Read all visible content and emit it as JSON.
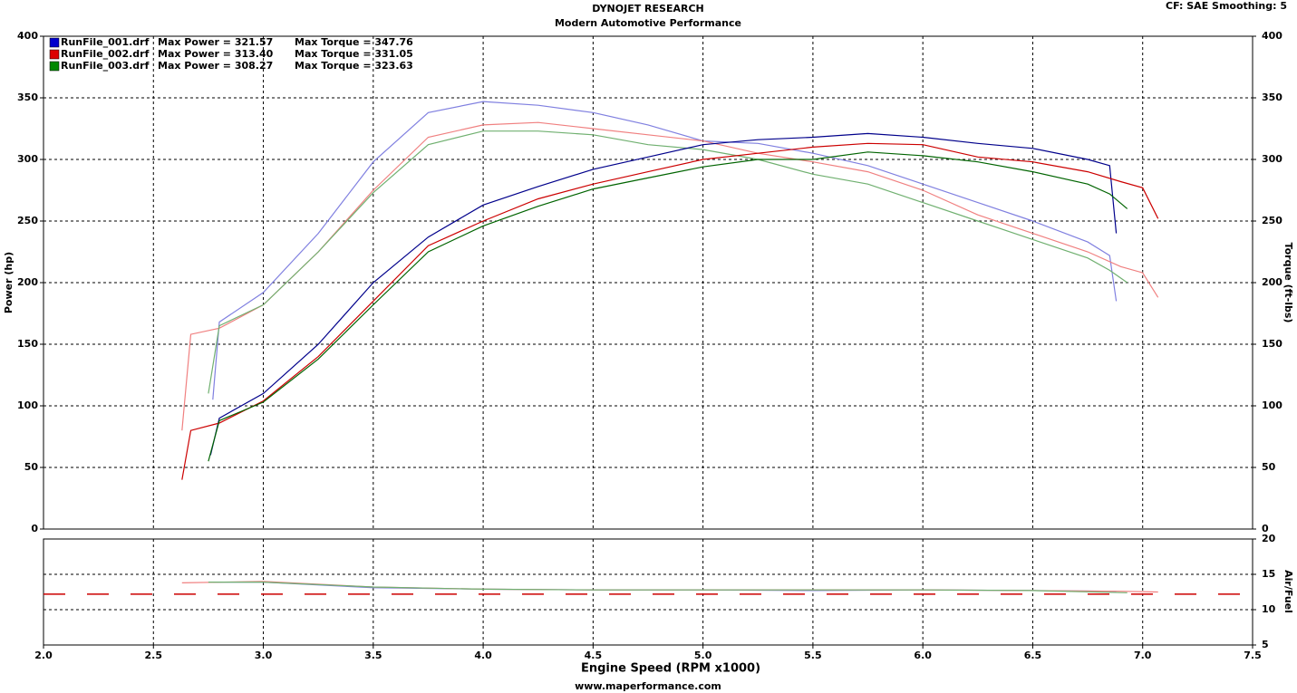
{
  "settings_note": "CF: SAE  Smoothing: 5",
  "footer": "www.maperformance.com",
  "chart_data": [
    {
      "type": "line",
      "title": "DYNOJET RESEARCH",
      "subtitle": "Modern Automotive Performance",
      "y_label": "Power (hp)",
      "y2_label": "Torque (ft-lbs)",
      "xlim": [
        2.0,
        7.5
      ],
      "ylim": [
        0,
        400
      ],
      "yticks": [
        0,
        50,
        100,
        150,
        200,
        250,
        300,
        350,
        400
      ],
      "y2lim": [
        0,
        400
      ],
      "y2ticks": [
        0,
        50,
        100,
        150,
        200,
        250,
        300,
        350,
        400
      ],
      "grid": true,
      "legend": [
        {
          "color": "#0000cc",
          "file": "RunFile_001.drf",
          "max_power": "Max Power = 321.57",
          "max_torque": "Max Torque = 347.76"
        },
        {
          "color": "#dd0000",
          "file": "RunFile_002.drf",
          "max_power": "Max Power = 313.40",
          "max_torque": "Max Torque = 331.05"
        },
        {
          "color": "#008800",
          "file": "RunFile_003.drf",
          "max_power": "Max Power = 308.27",
          "max_torque": "Max Torque = 323.63"
        }
      ],
      "series": [
        {
          "color": "#00008b",
          "x": [
            2.76,
            2.8,
            3.0,
            3.25,
            3.5,
            3.75,
            4.0,
            4.25,
            4.5,
            4.75,
            5.0,
            5.25,
            5.5,
            5.75,
            6.0,
            6.25,
            6.5,
            6.75,
            6.85,
            6.88
          ],
          "values": [
            60,
            90,
            110,
            150,
            200,
            237,
            263,
            278,
            292,
            302,
            312,
            316,
            318,
            321,
            318,
            313,
            309,
            300,
            295,
            240
          ]
        },
        {
          "color": "#cc0000",
          "x": [
            2.63,
            2.67,
            2.8,
            3.0,
            3.25,
            3.5,
            3.75,
            4.0,
            4.25,
            4.5,
            4.75,
            5.0,
            5.25,
            5.5,
            5.75,
            6.0,
            6.25,
            6.5,
            6.75,
            6.9,
            7.0,
            7.07
          ],
          "values": [
            40,
            80,
            86,
            104,
            140,
            185,
            230,
            250,
            268,
            280,
            290,
            300,
            305,
            310,
            313,
            312,
            302,
            298,
            290,
            282,
            277,
            252
          ]
        },
        {
          "color": "#006400",
          "x": [
            2.75,
            2.8,
            3.0,
            3.25,
            3.5,
            3.75,
            4.0,
            4.25,
            4.5,
            4.75,
            5.0,
            5.25,
            5.5,
            5.75,
            6.0,
            6.25,
            6.5,
            6.75,
            6.85,
            6.93
          ],
          "values": [
            55,
            88,
            103,
            138,
            182,
            225,
            246,
            262,
            276,
            285,
            294,
            300,
            300,
            306,
            303,
            298,
            290,
            280,
            272,
            260
          ]
        },
        {
          "color": "#8080e0",
          "axis": "y2",
          "x": [
            2.77,
            2.8,
            3.0,
            3.25,
            3.5,
            3.75,
            4.0,
            4.25,
            4.5,
            4.75,
            5.0,
            5.25,
            5.5,
            5.75,
            6.0,
            6.25,
            6.5,
            6.75,
            6.85,
            6.88
          ],
          "values": [
            105,
            168,
            192,
            240,
            298,
            338,
            347,
            344,
            338,
            328,
            315,
            313,
            305,
            295,
            280,
            265,
            250,
            233,
            222,
            185
          ]
        },
        {
          "color": "#f08080",
          "axis": "y2",
          "x": [
            2.63,
            2.67,
            2.8,
            3.0,
            3.25,
            3.5,
            3.75,
            4.0,
            4.25,
            4.5,
            4.75,
            5.0,
            5.25,
            5.5,
            5.75,
            6.0,
            6.25,
            6.5,
            6.75,
            6.9,
            7.0,
            7.07
          ],
          "values": [
            80,
            158,
            163,
            182,
            225,
            275,
            318,
            328,
            330,
            325,
            320,
            315,
            305,
            298,
            290,
            275,
            255,
            240,
            225,
            213,
            208,
            188
          ]
        },
        {
          "color": "#70b070",
          "axis": "y2",
          "x": [
            2.75,
            2.8,
            3.0,
            3.25,
            3.5,
            3.75,
            4.0,
            4.25,
            4.5,
            4.75,
            5.0,
            5.25,
            5.5,
            5.75,
            6.0,
            6.25,
            6.5,
            6.75,
            6.85,
            6.93
          ],
          "values": [
            110,
            165,
            182,
            225,
            273,
            312,
            323,
            323,
            320,
            312,
            308,
            300,
            288,
            280,
            265,
            250,
            235,
            220,
            210,
            200
          ]
        }
      ]
    },
    {
      "type": "line",
      "x_label": "Engine Speed (RPM x1000)",
      "y2_label": "Air/Fuel",
      "xlim": [
        2.0,
        7.5
      ],
      "xticks": [
        {
          "value": 2,
          "label": "2.0"
        },
        2.5,
        {
          "value": 3,
          "label": "3.0"
        },
        3.5,
        {
          "value": 4,
          "label": "4.0"
        },
        4.5,
        {
          "value": 5,
          "label": "5.0"
        },
        5.5,
        {
          "value": 6,
          "label": "6.0"
        },
        6.5,
        {
          "value": 7,
          "label": "7.0"
        },
        7.5
      ],
      "y2lim": [
        5,
        20
      ],
      "y2ticks": [
        5,
        10,
        15,
        20
      ],
      "grid": true,
      "reference_line": {
        "value": 12.2,
        "color": "#cc0000"
      },
      "series": [
        {
          "color": "#8080e0",
          "axis": "y2",
          "x": [
            2.77,
            3.0,
            3.5,
            4.0,
            4.5,
            5.0,
            5.5,
            6.0,
            6.5,
            6.88
          ],
          "values": [
            13.9,
            13.9,
            13.1,
            12.9,
            12.8,
            12.8,
            12.7,
            12.8,
            12.7,
            12.6
          ]
        },
        {
          "color": "#f08080",
          "axis": "y2",
          "x": [
            2.63,
            3.0,
            3.5,
            4.0,
            4.5,
            5.0,
            5.5,
            6.0,
            6.5,
            6.9,
            7.07
          ],
          "values": [
            13.8,
            14.0,
            13.2,
            12.9,
            12.8,
            12.8,
            12.8,
            12.8,
            12.7,
            12.6,
            12.5
          ]
        },
        {
          "color": "#70b070",
          "axis": "y2",
          "x": [
            2.75,
            3.0,
            3.5,
            4.0,
            4.5,
            5.0,
            5.5,
            6.0,
            6.5,
            6.93
          ],
          "values": [
            13.9,
            13.9,
            13.2,
            12.9,
            12.8,
            12.8,
            12.8,
            12.8,
            12.7,
            12.4
          ]
        }
      ]
    }
  ]
}
